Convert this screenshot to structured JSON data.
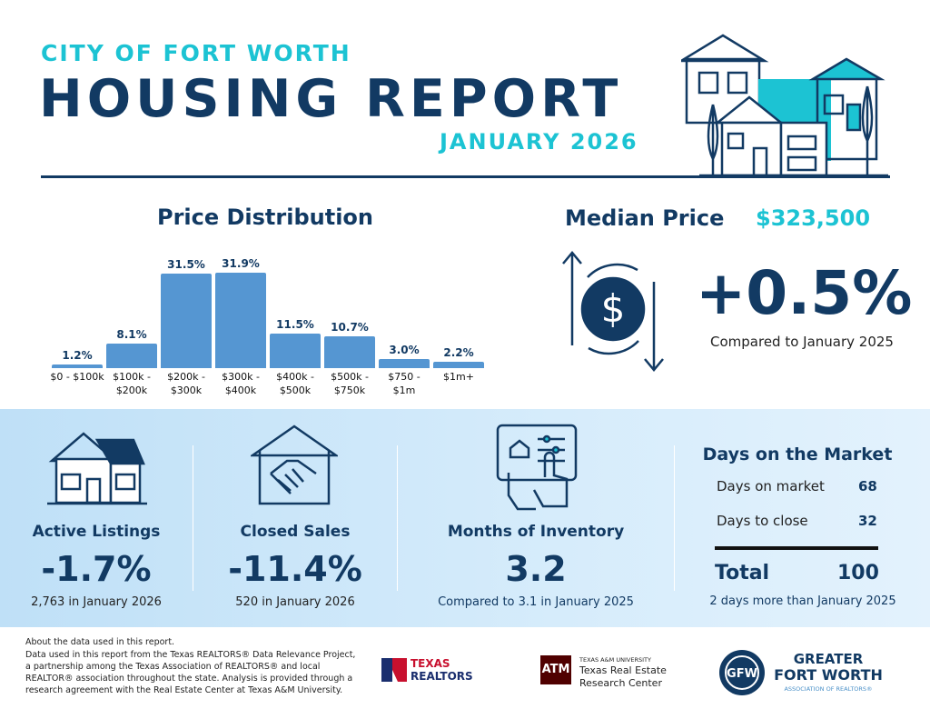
{
  "header": {
    "city": "CITY OF FORT WORTH",
    "title": "HOUSING REPORT",
    "date": "JANUARY 2026"
  },
  "chart_data": {
    "type": "bar",
    "title": "Price Distribution",
    "categories": [
      "$0 - $100k",
      "$100k - $200k",
      "$200k - $300k",
      "$300k - $400k",
      "$400k - $500k",
      "$500k - $750k",
      "$750 - $1m",
      "$1m+"
    ],
    "values": [
      1.2,
      8.1,
      31.5,
      31.9,
      11.5,
      10.7,
      3.0,
      2.2
    ],
    "value_labels": [
      "1.2%",
      "8.1%",
      "31.5%",
      "31.9%",
      "11.5%",
      "10.7%",
      "3.0%",
      "2.2%"
    ],
    "color": "#5596d2"
  },
  "median": {
    "label": "Median Price",
    "value": "$323,500",
    "change": "+0.5%",
    "note": "Compared to January 2025"
  },
  "stats": [
    {
      "label": "Active Listings",
      "value": "-1.7%",
      "note": "2,763 in January 2026"
    },
    {
      "label": "Closed Sales",
      "value": "-11.4%",
      "note": "520 in January 2026"
    },
    {
      "label": "Months of Inventory",
      "value": "3.2",
      "note": "Compared to 3.1 in January 2025"
    }
  ],
  "days": {
    "title": "Days on the Market",
    "rows": [
      {
        "label": "Days on market",
        "value": 68
      },
      {
        "label": "Days to close",
        "value": 32
      }
    ],
    "total_label": "Total",
    "total_value": 100,
    "note": "2 days more than January 2025"
  },
  "footer": {
    "lines": [
      "About the data used in this report.",
      "Data used in this report from the Texas REALTORS® Data Relevance Project, a partnership among the Texas Association of REALTORS® and local REALTOR® association throughout the state. Analysis is provided through a research agreement with the Real Estate Center at Texas A&M University."
    ]
  },
  "logos": {
    "texas_realtors": [
      "TEXAS",
      "REALTORS"
    ],
    "tamu": {
      "small": "TEXAS A&M UNIVERSITY",
      "lines": [
        "Texas Real Estate",
        "Research Center"
      ]
    },
    "gfw": {
      "line1": "GREATER",
      "line2": "FORT WORTH",
      "line3": "ASSOCIATION OF REALTORS®"
    }
  }
}
